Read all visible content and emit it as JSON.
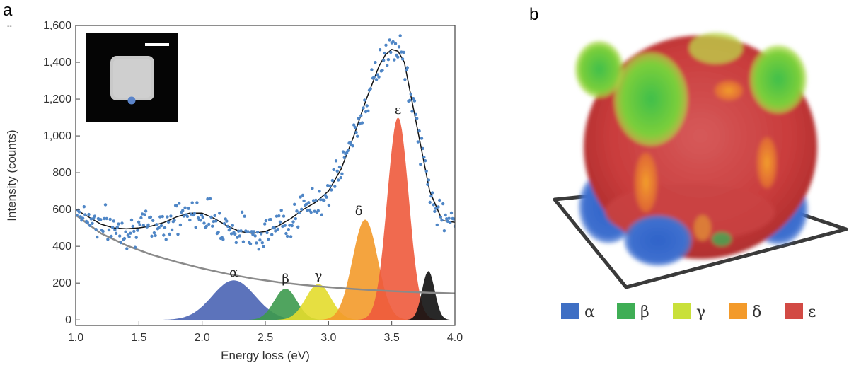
{
  "panel_a_label": "a",
  "panel_b_label": "b",
  "corner_mark": "--",
  "chart_data": {
    "type": "scatter",
    "title": "",
    "xlabel": "Energy loss (eV)",
    "ylabel": "Intensity (counts)",
    "xlim": [
      1.0,
      4.0
    ],
    "ylim": [
      -30,
      1600
    ],
    "x_ticks": [
      1.0,
      1.5,
      2.0,
      2.5,
      3.0,
      3.5,
      4.0
    ],
    "x_tick_labels": [
      "1.0",
      "1.5",
      "2.0",
      "2.5",
      "3.0",
      "3.5",
      "4.0"
    ],
    "y_ticks": [
      0,
      200,
      400,
      600,
      800,
      1000,
      1200,
      1400,
      1600
    ],
    "y_tick_labels": [
      "0",
      "200",
      "400",
      "600",
      "800",
      "1,000",
      "1,200",
      "1,400",
      "1,600"
    ],
    "fit_curve": {
      "name": "fit",
      "color": "#111111",
      "x": [
        1.0,
        1.1,
        1.2,
        1.3,
        1.4,
        1.5,
        1.6,
        1.7,
        1.8,
        1.9,
        2.0,
        2.1,
        2.2,
        2.3,
        2.4,
        2.5,
        2.6,
        2.7,
        2.8,
        2.9,
        3.0,
        3.1,
        3.2,
        3.3,
        3.4,
        3.45,
        3.5,
        3.55,
        3.6,
        3.7,
        3.8,
        3.9,
        4.0
      ],
      "y": [
        600,
        560,
        520,
        500,
        495,
        500,
        510,
        530,
        560,
        580,
        580,
        550,
        510,
        480,
        470,
        480,
        510,
        550,
        600,
        640,
        700,
        820,
        1000,
        1200,
        1380,
        1440,
        1470,
        1460,
        1400,
        1050,
        700,
        540,
        530
      ]
    },
    "background_curve": {
      "name": "background",
      "color": "#8a8a8a",
      "x": [
        1.0,
        1.2,
        1.4,
        1.6,
        1.8,
        2.0,
        2.2,
        2.4,
        2.6,
        2.8,
        3.0,
        3.2,
        3.4,
        3.6,
        3.8,
        4.0
      ],
      "y": [
        570,
        470,
        405,
        355,
        315,
        280,
        250,
        225,
        205,
        190,
        178,
        168,
        160,
        153,
        148,
        144
      ]
    },
    "peaks": [
      {
        "name": "α",
        "center": 2.25,
        "amplitude": 215,
        "width": 0.17,
        "color": "#4a64b4"
      },
      {
        "name": "β",
        "center": 2.66,
        "amplitude": 170,
        "width": 0.09,
        "color": "#3d9a4e"
      },
      {
        "name": "γ",
        "center": 2.92,
        "amplitude": 195,
        "width": 0.1,
        "color": "#e3dc2c"
      },
      {
        "name": "δ",
        "center": 3.29,
        "amplitude": 545,
        "width": 0.1,
        "color": "#f39a2a"
      },
      {
        "name": "ε",
        "center": 3.55,
        "amplitude": 1100,
        "width": 0.085,
        "color": "#ee5a3c"
      },
      {
        "name": "",
        "center": 3.79,
        "amplitude": 265,
        "width": 0.05,
        "color": "#111111"
      }
    ],
    "peak_labels": [
      {
        "text": "α",
        "x": 2.25,
        "y": 235
      },
      {
        "text": "β",
        "x": 2.66,
        "y": 200
      },
      {
        "text": "γ",
        "x": 2.92,
        "y": 220
      },
      {
        "text": "δ",
        "x": 3.24,
        "y": 570
      },
      {
        "text": "ε",
        "x": 3.55,
        "y": 1120
      }
    ],
    "scatter_seed": 7,
    "scatter_spread": 45,
    "scatter_count": 320,
    "scatter_color": "#4f86c6"
  },
  "inset": {
    "scale_bar": true,
    "marker_color": "#5b84c9"
  },
  "legend_b": [
    {
      "symbol": "α",
      "color": "#3f6fc4"
    },
    {
      "symbol": "β",
      "color": "#3fae55"
    },
    {
      "symbol": "γ",
      "color": "#c9e03a"
    },
    {
      "symbol": "δ",
      "color": "#f39a2a"
    },
    {
      "symbol": "ε",
      "color": "#d24a44"
    }
  ]
}
